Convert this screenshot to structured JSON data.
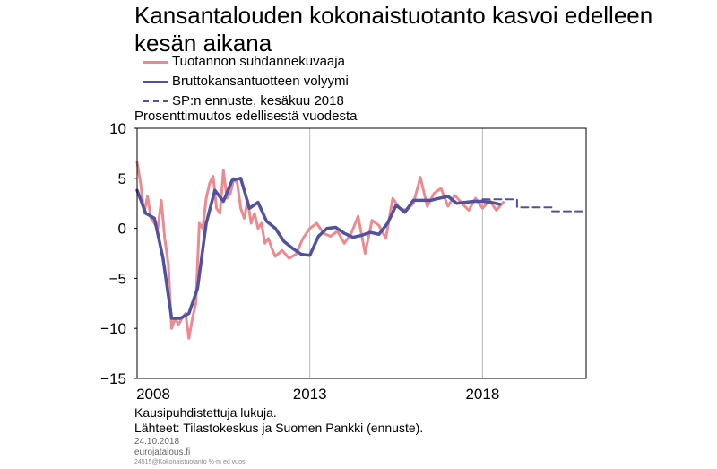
{
  "chart_data": {
    "type": "line",
    "title": "Kansantalouden kokonaistuotanto kasvoi edelleen kesän aikana",
    "ylabel": "Prosenttimuutos edellisestä vuodesta",
    "xlim": [
      2008,
      2021
    ],
    "ylim": [
      -15,
      10
    ],
    "yticks": [
      10,
      5,
      0,
      -5,
      -10,
      -15
    ],
    "ytick_labels": [
      "10",
      "5",
      "0",
      "−5",
      "−10",
      "−15"
    ],
    "xticks": [
      2008,
      2013,
      2018
    ],
    "xtick_labels": [
      "2008",
      "2013",
      "2018"
    ],
    "grid": "vertical",
    "legend": "top",
    "series": [
      {
        "name": "Tuotannon suhdannekuvaaja",
        "style": "solid-thin",
        "color": "#ee8a8f",
        "x": [
          2008.0,
          2008.1,
          2008.2,
          2008.3,
          2008.4,
          2008.5,
          2008.6,
          2008.7,
          2008.8,
          2008.9,
          2009.0,
          2009.1,
          2009.2,
          2009.3,
          2009.4,
          2009.5,
          2009.6,
          2009.7,
          2009.8,
          2009.9,
          2010.0,
          2010.1,
          2010.2,
          2010.3,
          2010.4,
          2010.5,
          2010.6,
          2010.7,
          2010.8,
          2010.9,
          2011.0,
          2011.1,
          2011.2,
          2011.3,
          2011.4,
          2011.5,
          2011.6,
          2011.7,
          2011.8,
          2011.9,
          2012.0,
          2012.2,
          2012.4,
          2012.6,
          2012.8,
          2013.0,
          2013.2,
          2013.4,
          2013.6,
          2013.8,
          2014.0,
          2014.2,
          2014.4,
          2014.6,
          2014.8,
          2015.0,
          2015.2,
          2015.4,
          2015.6,
          2015.8,
          2016.0,
          2016.2,
          2016.4,
          2016.6,
          2016.8,
          2017.0,
          2017.2,
          2017.4,
          2017.6,
          2017.8,
          2018.0,
          2018.2,
          2018.4,
          2018.6
        ],
        "y": [
          6.6,
          4.5,
          1.5,
          3.2,
          1.0,
          0.5,
          0.0,
          2.8,
          -1.0,
          -3.5,
          -10.0,
          -9.0,
          -9.6,
          -9.0,
          -8.5,
          -11.0,
          -9.0,
          -7.5,
          0.5,
          0.0,
          3.0,
          4.5,
          5.2,
          2.0,
          1.5,
          5.8,
          3.0,
          3.5,
          5.0,
          4.5,
          2.0,
          1.0,
          2.8,
          0.5,
          1.5,
          0.0,
          0.5,
          -1.5,
          -1.0,
          -2.0,
          -2.8,
          -2.2,
          -3.0,
          -2.6,
          -1.0,
          0.0,
          0.5,
          -0.5,
          -0.8,
          -0.3,
          -1.5,
          -0.5,
          1.2,
          -2.5,
          0.8,
          0.3,
          -1.0,
          3.0,
          2.0,
          1.8,
          2.5,
          5.1,
          2.2,
          3.5,
          4.0,
          2.2,
          3.3,
          2.5,
          1.8,
          3.0,
          2.0,
          2.8,
          1.8,
          2.6
        ]
      },
      {
        "name": "Bruttokansantuotteen volyymi",
        "style": "solid-thick",
        "color": "#4f52a0",
        "x": [
          2008.0,
          2008.25,
          2008.5,
          2008.75,
          2009.0,
          2009.25,
          2009.5,
          2009.75,
          2010.0,
          2010.25,
          2010.5,
          2010.75,
          2011.0,
          2011.25,
          2011.5,
          2011.75,
          2012.0,
          2012.25,
          2012.5,
          2012.75,
          2013.0,
          2013.25,
          2013.5,
          2013.75,
          2014.0,
          2014.25,
          2014.5,
          2014.75,
          2015.0,
          2015.25,
          2015.5,
          2015.75,
          2016.0,
          2016.25,
          2016.5,
          2016.75,
          2017.0,
          2017.25,
          2017.5,
          2017.75,
          2018.0,
          2018.25,
          2018.5
        ],
        "y": [
          3.8,
          1.5,
          1.0,
          -3.0,
          -9.0,
          -9.0,
          -8.5,
          -6.0,
          0.5,
          3.8,
          2.7,
          4.8,
          5.0,
          2.0,
          2.6,
          0.7,
          0.0,
          -1.3,
          -2.0,
          -2.6,
          -2.7,
          -0.8,
          0.0,
          0.1,
          -0.5,
          -0.9,
          -0.7,
          -0.4,
          -0.6,
          0.5,
          2.3,
          1.6,
          2.8,
          2.8,
          2.8,
          3.0,
          3.2,
          2.5,
          2.6,
          2.7,
          2.7,
          2.6,
          2.4
        ]
      },
      {
        "name": "SP:n ennuste, kesäkuu 2018",
        "style": "dashed",
        "color": "#4f52a0",
        "x": [
          2018.0,
          2019.0,
          2019.0,
          2020.0,
          2020.0,
          2021.0
        ],
        "y": [
          2.9,
          2.9,
          2.1,
          2.1,
          1.7,
          1.7
        ]
      }
    ],
    "footnote": "Kausipuhdistettuja lukuja.",
    "source": "Lähteet: Tilastokeskus ja Suomen Pankki (ennuste)."
  },
  "meta": {
    "date": "24.10.2018",
    "site": "eurojatalous.fi",
    "code": "24515@Kokonaistuotanto  %-m ed vuosi"
  }
}
